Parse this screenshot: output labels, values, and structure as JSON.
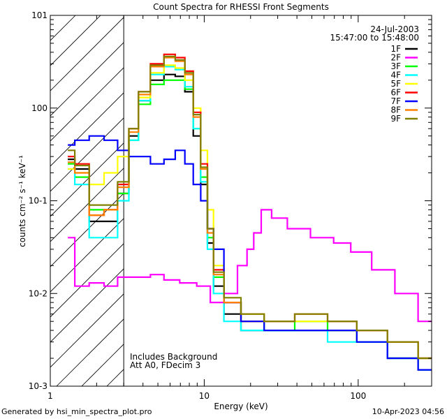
{
  "chart_data": {
    "type": "line",
    "title": "Count Spectra for RHESSI Front Segments",
    "xlabel": "Energy (keV)",
    "ylabel": "counts cm⁻² s⁻¹ keV⁻¹",
    "xscale": "log",
    "yscale": "log",
    "xlim": [
      1,
      300
    ],
    "ylim": [
      0.001,
      10
    ],
    "x_tick_labels": [
      "1",
      "10",
      "100"
    ],
    "y_tick_labels": [
      "10-3",
      "10-2",
      "10-1",
      "100",
      "101"
    ],
    "date": "24-Jul-2003",
    "time_range": "15:47:00 to 15:48:00",
    "shaded_region_max_kev": 3,
    "annotation_1": "Includes Background",
    "annotation_2": "Att A0, FDecim 3",
    "legend_position": "top-right",
    "series": [
      {
        "name": "1F",
        "color": "#000000",
        "points": [
          [
            1.3,
            0.28
          ],
          [
            1.6,
            0.22
          ],
          [
            2.0,
            0.06
          ],
          [
            2.5,
            0.06
          ],
          [
            3.0,
            0.12
          ],
          [
            3.5,
            0.5
          ],
          [
            4.0,
            1.2
          ],
          [
            5.0,
            2.0
          ],
          [
            6.0,
            2.3
          ],
          [
            7.0,
            2.2
          ],
          [
            8.0,
            1.5
          ],
          [
            9.0,
            0.5
          ],
          [
            10,
            0.15
          ],
          [
            11,
            0.035
          ],
          [
            12,
            0.012
          ],
          [
            15,
            0.006
          ],
          [
            20,
            0.004
          ],
          [
            30,
            0.004
          ],
          [
            50,
            0.004
          ],
          [
            80,
            0.004
          ],
          [
            120,
            0.003
          ],
          [
            200,
            0.002
          ],
          [
            300,
            0.0015
          ]
        ]
      },
      {
        "name": "2F",
        "color": "#ff00ff",
        "points": [
          [
            1.3,
            0.04
          ],
          [
            1.6,
            0.012
          ],
          [
            2.0,
            0.013
          ],
          [
            2.5,
            0.012
          ],
          [
            3.0,
            0.015
          ],
          [
            4.0,
            0.015
          ],
          [
            5.0,
            0.016
          ],
          [
            6.0,
            0.014
          ],
          [
            8.0,
            0.013
          ],
          [
            10,
            0.012
          ],
          [
            12,
            0.008
          ],
          [
            15,
            0.01
          ],
          [
            18,
            0.02
          ],
          [
            20,
            0.03
          ],
          [
            22,
            0.045
          ],
          [
            25,
            0.08
          ],
          [
            30,
            0.065
          ],
          [
            40,
            0.05
          ],
          [
            60,
            0.04
          ],
          [
            80,
            0.035
          ],
          [
            100,
            0.028
          ],
          [
            150,
            0.018
          ],
          [
            200,
            0.01
          ],
          [
            300,
            0.005
          ]
        ]
      },
      {
        "name": "3F",
        "color": "#00ff00",
        "points": [
          [
            1.3,
            0.25
          ],
          [
            1.6,
            0.18
          ],
          [
            2.0,
            0.08
          ],
          [
            2.5,
            0.08
          ],
          [
            3.0,
            0.12
          ],
          [
            3.5,
            0.45
          ],
          [
            4.0,
            1.1
          ],
          [
            5.0,
            1.8
          ],
          [
            6.0,
            2.0
          ],
          [
            7.0,
            2.0
          ],
          [
            8.0,
            1.6
          ],
          [
            9.0,
            0.6
          ],
          [
            10,
            0.18
          ],
          [
            11,
            0.04
          ],
          [
            12,
            0.015
          ],
          [
            15,
            0.008
          ],
          [
            20,
            0.005
          ],
          [
            30,
            0.004
          ],
          [
            50,
            0.005
          ],
          [
            80,
            0.004
          ],
          [
            120,
            0.003
          ],
          [
            200,
            0.002
          ],
          [
            300,
            0.0015
          ]
        ]
      },
      {
        "name": "4F",
        "color": "#00ffff",
        "points": [
          [
            1.3,
            0.22
          ],
          [
            1.6,
            0.15
          ],
          [
            2.0,
            0.04
          ],
          [
            2.5,
            0.04
          ],
          [
            3.0,
            0.1
          ],
          [
            3.5,
            0.45
          ],
          [
            4.0,
            1.2
          ],
          [
            5.0,
            2.3
          ],
          [
            6.0,
            2.8
          ],
          [
            7.0,
            2.6
          ],
          [
            8.0,
            1.7
          ],
          [
            9.0,
            0.6
          ],
          [
            10,
            0.16
          ],
          [
            11,
            0.03
          ],
          [
            12,
            0.01
          ],
          [
            15,
            0.005
          ],
          [
            20,
            0.004
          ],
          [
            30,
            0.004
          ],
          [
            50,
            0.004
          ],
          [
            80,
            0.003
          ],
          [
            120,
            0.003
          ],
          [
            200,
            0.002
          ],
          [
            300,
            0.0015
          ]
        ]
      },
      {
        "name": "5F",
        "color": "#ffff00",
        "points": [
          [
            1.3,
            0.22
          ],
          [
            1.6,
            0.2
          ],
          [
            2.0,
            0.15
          ],
          [
            2.5,
            0.2
          ],
          [
            3.0,
            0.3
          ],
          [
            3.5,
            0.6
          ],
          [
            4.0,
            1.3
          ],
          [
            5.0,
            2.4
          ],
          [
            6.0,
            2.9
          ],
          [
            7.0,
            2.7
          ],
          [
            8.0,
            2.0
          ],
          [
            9.0,
            1.0
          ],
          [
            10,
            0.35
          ],
          [
            11,
            0.08
          ],
          [
            12,
            0.02
          ],
          [
            15,
            0.008
          ],
          [
            20,
            0.006
          ],
          [
            30,
            0.005
          ],
          [
            50,
            0.005
          ],
          [
            80,
            0.005
          ],
          [
            120,
            0.004
          ],
          [
            200,
            0.003
          ],
          [
            300,
            0.002
          ]
        ]
      },
      {
        "name": "6F",
        "color": "#ff0000",
        "points": [
          [
            1.3,
            0.3
          ],
          [
            1.6,
            0.25
          ],
          [
            2.0,
            0.07
          ],
          [
            2.5,
            0.08
          ],
          [
            3.0,
            0.15
          ],
          [
            3.5,
            0.6
          ],
          [
            4.0,
            1.5
          ],
          [
            5.0,
            3.0
          ],
          [
            6.0,
            3.8
          ],
          [
            7.0,
            3.5
          ],
          [
            8.0,
            2.5
          ],
          [
            9.0,
            0.9
          ],
          [
            10,
            0.25
          ],
          [
            11,
            0.05
          ],
          [
            12,
            0.018
          ],
          [
            15,
            0.008
          ],
          [
            20,
            0.005
          ],
          [
            30,
            0.005
          ],
          [
            50,
            0.006
          ],
          [
            80,
            0.005
          ],
          [
            120,
            0.004
          ],
          [
            200,
            0.003
          ],
          [
            300,
            0.002
          ]
        ]
      },
      {
        "name": "7F",
        "color": "#0000ff",
        "points": [
          [
            1.3,
            0.4
          ],
          [
            1.6,
            0.45
          ],
          [
            2.0,
            0.5
          ],
          [
            2.5,
            0.45
          ],
          [
            3.0,
            0.35
          ],
          [
            3.5,
            0.3
          ],
          [
            4.0,
            0.3
          ],
          [
            5.0,
            0.25
          ],
          [
            6.0,
            0.28
          ],
          [
            7.0,
            0.35
          ],
          [
            8.0,
            0.25
          ],
          [
            9.0,
            0.15
          ],
          [
            10,
            0.1
          ],
          [
            11,
            0.05
          ],
          [
            12,
            0.03
          ],
          [
            15,
            0.008
          ],
          [
            20,
            0.005
          ],
          [
            30,
            0.004
          ],
          [
            50,
            0.004
          ],
          [
            80,
            0.004
          ],
          [
            120,
            0.003
          ],
          [
            200,
            0.002
          ],
          [
            300,
            0.0015
          ]
        ]
      },
      {
        "name": "8F",
        "color": "#ff8000",
        "points": [
          [
            1.3,
            0.26
          ],
          [
            1.6,
            0.2
          ],
          [
            2.0,
            0.07
          ],
          [
            2.5,
            0.08
          ],
          [
            3.0,
            0.14
          ],
          [
            3.5,
            0.55
          ],
          [
            4.0,
            1.4
          ],
          [
            5.0,
            2.8
          ],
          [
            6.0,
            3.5
          ],
          [
            7.0,
            3.2
          ],
          [
            8.0,
            2.3
          ],
          [
            9.0,
            0.8
          ],
          [
            10,
            0.22
          ],
          [
            11,
            0.045
          ],
          [
            12,
            0.016
          ],
          [
            15,
            0.008
          ],
          [
            20,
            0.006
          ],
          [
            30,
            0.005
          ],
          [
            50,
            0.006
          ],
          [
            80,
            0.005
          ],
          [
            120,
            0.004
          ],
          [
            200,
            0.003
          ],
          [
            300,
            0.002
          ]
        ]
      },
      {
        "name": "9F",
        "color": "#808000",
        "points": [
          [
            1.3,
            0.35
          ],
          [
            1.6,
            0.24
          ],
          [
            2.0,
            0.09
          ],
          [
            2.5,
            0.09
          ],
          [
            3.0,
            0.16
          ],
          [
            3.5,
            0.6
          ],
          [
            4.0,
            1.5
          ],
          [
            5.0,
            2.9
          ],
          [
            6.0,
            3.6
          ],
          [
            7.0,
            3.3
          ],
          [
            8.0,
            2.4
          ],
          [
            9.0,
            0.85
          ],
          [
            10,
            0.23
          ],
          [
            11,
            0.05
          ],
          [
            12,
            0.017
          ],
          [
            15,
            0.009
          ],
          [
            20,
            0.006
          ],
          [
            30,
            0.005
          ],
          [
            50,
            0.006
          ],
          [
            80,
            0.005
          ],
          [
            120,
            0.004
          ],
          [
            200,
            0.003
          ],
          [
            300,
            0.002
          ]
        ]
      }
    ]
  },
  "footer": {
    "generated_by": "Generated by hsi_min_spectra_plot.pro",
    "timestamp": "10-Apr-2023 04:56"
  }
}
